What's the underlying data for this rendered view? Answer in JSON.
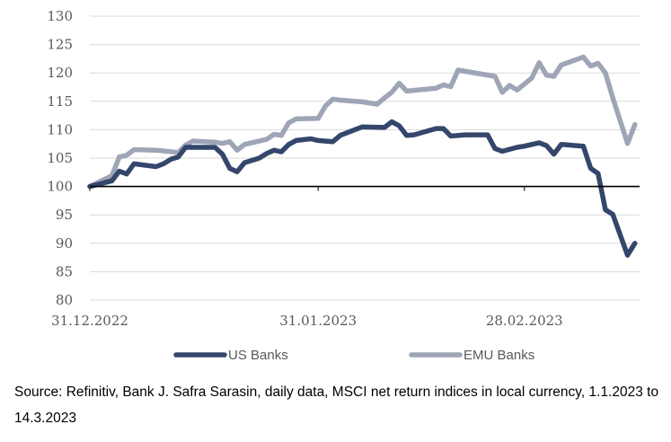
{
  "chart_data": {
    "type": "line",
    "ylim": [
      80,
      130
    ],
    "yticks": [
      80,
      85,
      90,
      95,
      100,
      105,
      110,
      115,
      120,
      125,
      130
    ],
    "xlim": [
      "2022-12-31",
      "2023-03-14"
    ],
    "xticks": [
      {
        "date": "2022-12-31",
        "label": "31.12.2022"
      },
      {
        "date": "2023-01-31",
        "label": "31.01.2023"
      },
      {
        "date": "2023-02-28",
        "label": "28.02.2023"
      }
    ],
    "baseline": 100,
    "grid": true,
    "legend_position": "bottom",
    "series": [
      {
        "name": "US Banks",
        "color": "#34466b",
        "points": [
          [
            "2022-12-31",
            100.0
          ],
          [
            "2023-01-03",
            101.0
          ],
          [
            "2023-01-04",
            102.7
          ],
          [
            "2023-01-05",
            102.2
          ],
          [
            "2023-01-06",
            104.0
          ],
          [
            "2023-01-09",
            103.5
          ],
          [
            "2023-01-10",
            104.0
          ],
          [
            "2023-01-11",
            104.8
          ],
          [
            "2023-01-12",
            105.2
          ],
          [
            "2023-01-13",
            106.9
          ],
          [
            "2023-01-17",
            106.9
          ],
          [
            "2023-01-18",
            105.7
          ],
          [
            "2023-01-19",
            103.2
          ],
          [
            "2023-01-20",
            102.6
          ],
          [
            "2023-01-21",
            104.2
          ],
          [
            "2023-01-23",
            105.0
          ],
          [
            "2023-01-24",
            105.8
          ],
          [
            "2023-01-25",
            106.4
          ],
          [
            "2023-01-26",
            106.1
          ],
          [
            "2023-01-27",
            107.4
          ],
          [
            "2023-01-28",
            108.1
          ],
          [
            "2023-01-30",
            108.4
          ],
          [
            "2023-01-31",
            108.1
          ],
          [
            "2023-02-02",
            107.9
          ],
          [
            "2023-02-03",
            109.0
          ],
          [
            "2023-02-06",
            110.5
          ],
          [
            "2023-02-09",
            110.4
          ],
          [
            "2023-02-10",
            111.4
          ],
          [
            "2023-02-11",
            110.7
          ],
          [
            "2023-02-12",
            109.0
          ],
          [
            "2023-02-13",
            109.1
          ],
          [
            "2023-02-16",
            110.2
          ],
          [
            "2023-02-17",
            110.2
          ],
          [
            "2023-02-18",
            108.9
          ],
          [
            "2023-02-20",
            109.1
          ],
          [
            "2023-02-23",
            109.1
          ],
          [
            "2023-02-24",
            106.7
          ],
          [
            "2023-02-25",
            106.2
          ],
          [
            "2023-02-27",
            106.9
          ],
          [
            "2023-02-28",
            107.1
          ],
          [
            "2023-03-01",
            107.4
          ],
          [
            "2023-03-02",
            107.7
          ],
          [
            "2023-03-03",
            107.2
          ],
          [
            "2023-03-04",
            105.7
          ],
          [
            "2023-03-05",
            107.4
          ],
          [
            "2023-03-08",
            107.1
          ],
          [
            "2023-03-09",
            103.2
          ],
          [
            "2023-03-10",
            102.3
          ],
          [
            "2023-03-11",
            95.9
          ],
          [
            "2023-03-12",
            95.1
          ],
          [
            "2023-03-13",
            91.5
          ],
          [
            "2023-03-14",
            87.9
          ],
          [
            "2023-03-15",
            90.0
          ]
        ]
      },
      {
        "name": "EMU Banks",
        "color": "#9da5b6",
        "points": [
          [
            "2022-12-31",
            100.0
          ],
          [
            "2023-01-03",
            101.9
          ],
          [
            "2023-01-04",
            105.2
          ],
          [
            "2023-01-05",
            105.5
          ],
          [
            "2023-01-06",
            106.5
          ],
          [
            "2023-01-09",
            106.4
          ],
          [
            "2023-01-12",
            106.0
          ],
          [
            "2023-01-13",
            107.3
          ],
          [
            "2023-01-14",
            108.0
          ],
          [
            "2023-01-17",
            107.8
          ],
          [
            "2023-01-18",
            107.6
          ],
          [
            "2023-01-19",
            107.9
          ],
          [
            "2023-01-20",
            106.4
          ],
          [
            "2023-01-21",
            107.4
          ],
          [
            "2023-01-24",
            108.3
          ],
          [
            "2023-01-25",
            109.2
          ],
          [
            "2023-01-26",
            109.0
          ],
          [
            "2023-01-27",
            111.2
          ],
          [
            "2023-01-28",
            111.9
          ],
          [
            "2023-01-31",
            112.0
          ],
          [
            "2023-02-01",
            114.2
          ],
          [
            "2023-02-02",
            115.4
          ],
          [
            "2023-02-03",
            115.2
          ],
          [
            "2023-02-06",
            114.9
          ],
          [
            "2023-02-08",
            114.5
          ],
          [
            "2023-02-09",
            115.6
          ],
          [
            "2023-02-10",
            116.6
          ],
          [
            "2023-02-11",
            118.2
          ],
          [
            "2023-02-12",
            116.8
          ],
          [
            "2023-02-16",
            117.3
          ],
          [
            "2023-02-17",
            117.9
          ],
          [
            "2023-02-18",
            117.6
          ],
          [
            "2023-02-19",
            120.5
          ],
          [
            "2023-02-24",
            119.4
          ],
          [
            "2023-02-25",
            116.6
          ],
          [
            "2023-02-26",
            117.8
          ],
          [
            "2023-02-27",
            117.0
          ],
          [
            "2023-03-01",
            119.1
          ],
          [
            "2023-03-02",
            121.8
          ],
          [
            "2023-03-03",
            119.6
          ],
          [
            "2023-03-04",
            119.4
          ],
          [
            "2023-03-05",
            121.4
          ],
          [
            "2023-03-08",
            122.8
          ],
          [
            "2023-03-09",
            121.2
          ],
          [
            "2023-03-10",
            121.7
          ],
          [
            "2023-03-11",
            120.0
          ],
          [
            "2023-03-12",
            115.6
          ],
          [
            "2023-03-14",
            107.6
          ],
          [
            "2023-03-15",
            110.9
          ]
        ]
      }
    ]
  },
  "source_note": "Source: Refinitiv, Bank J. Safra Sarasin, daily data, MSCI net return indices in local currency, 1.1.2023 to 14.3.2023"
}
